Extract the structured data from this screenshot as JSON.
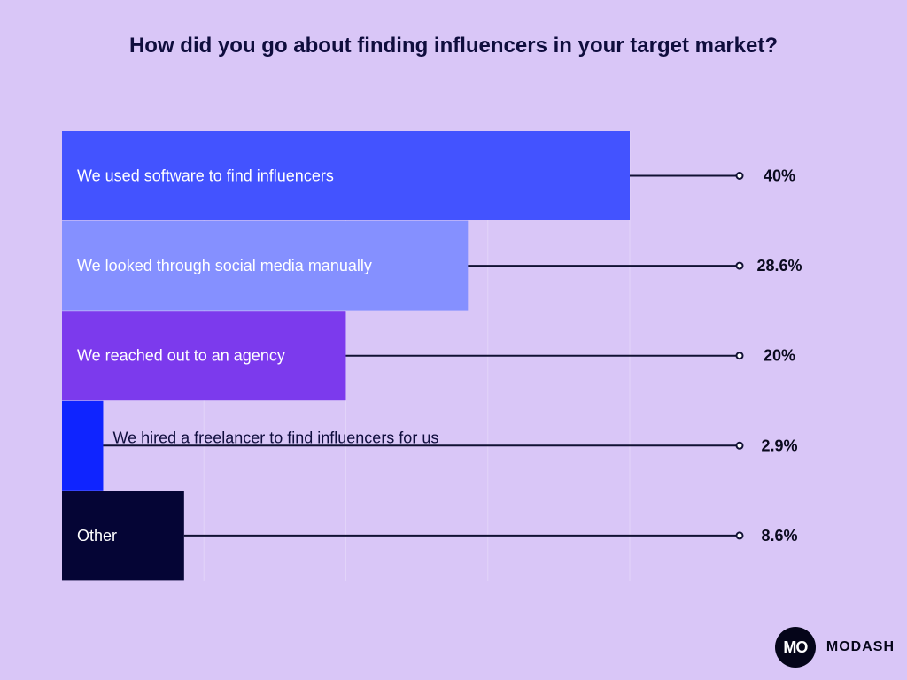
{
  "colors": {
    "background": "#d9c6f7",
    "line": "#111133",
    "grid": "#ffffff"
  },
  "chart_data": {
    "type": "bar",
    "orientation": "horizontal",
    "title": "How did you go about finding influencers in your target market?",
    "categories": [
      "We used software to find influencers",
      "We looked through social media manually",
      "We reached out to an agency",
      "We hired a freelancer to find influencers for us",
      "Other"
    ],
    "values": [
      40,
      28.6,
      20,
      2.9,
      8.6
    ],
    "value_labels": [
      "40%",
      "28.6%",
      "20%",
      "2.9%",
      "8.6%"
    ],
    "bar_colors": [
      "#4353ff",
      "#8590ff",
      "#7c3aed",
      "#0f24ff",
      "#050535"
    ],
    "xlim": [
      0,
      40
    ],
    "grid": true,
    "legend": "none"
  },
  "brand": {
    "logo_text": "MO",
    "name": "MODASH"
  }
}
